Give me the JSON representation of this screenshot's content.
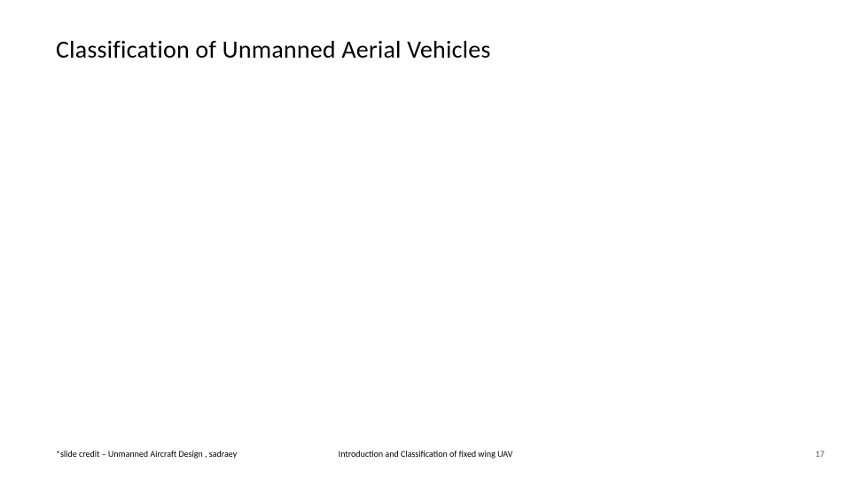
{
  "slide": {
    "title": "Classification of Unmanned Aerial Vehicles",
    "background_color": "#ffffff",
    "title_color": "#000000",
    "title_fontsize": 28,
    "title_fontweight": 400
  },
  "footer": {
    "left_text": "*slide credit – Unmanned Aircraft Design , sadraey",
    "center_text": "Introduction and Classification of fixed wing UAV",
    "page_number": "17",
    "footer_fontsize": 10,
    "footer_color": "#000000",
    "page_number_color": "#595959"
  }
}
